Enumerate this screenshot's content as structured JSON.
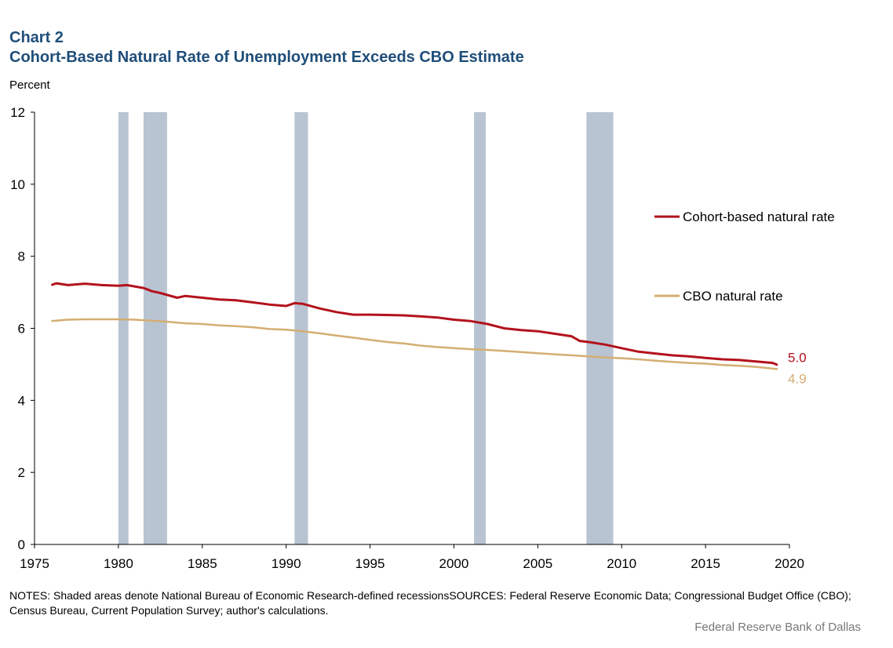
{
  "header": {
    "chart_number": "Chart 2",
    "title": "Cohort-Based Natural Rate of Unemployment Exceeds CBO Estimate",
    "unit": "Percent"
  },
  "chart_data": {
    "type": "line",
    "title": "Cohort-Based Natural Rate of Unemployment Exceeds CBO Estimate",
    "ylabel": "Percent",
    "xlabel": "",
    "xlim": [
      1975,
      2020
    ],
    "ylim": [
      0,
      12
    ],
    "x_ticks": [
      1975,
      1980,
      1985,
      1990,
      1995,
      2000,
      2005,
      2010,
      2015,
      2020
    ],
    "y_ticks": [
      0,
      2,
      4,
      6,
      8,
      10,
      12
    ],
    "grid": false,
    "recessions": [
      {
        "start": 1980.0,
        "end": 1980.6
      },
      {
        "start": 1981.5,
        "end": 1982.9
      },
      {
        "start": 1990.5,
        "end": 1991.3
      },
      {
        "start": 2001.2,
        "end": 2001.9
      },
      {
        "start": 2007.9,
        "end": 2009.5
      }
    ],
    "series": [
      {
        "name": "Cohort-based natural rate",
        "color": "#b3121c",
        "end_label": "5.0",
        "points": [
          [
            1976.0,
            7.2
          ],
          [
            1976.3,
            7.25
          ],
          [
            1977.0,
            7.2
          ],
          [
            1978.0,
            7.24
          ],
          [
            1979.0,
            7.2
          ],
          [
            1980.0,
            7.18
          ],
          [
            1980.5,
            7.2
          ],
          [
            1981.5,
            7.12
          ],
          [
            1982.0,
            7.03
          ],
          [
            1982.5,
            6.98
          ],
          [
            1983.5,
            6.85
          ],
          [
            1984.0,
            6.9
          ],
          [
            1985.0,
            6.85
          ],
          [
            1986.0,
            6.8
          ],
          [
            1987.0,
            6.78
          ],
          [
            1988.0,
            6.72
          ],
          [
            1989.0,
            6.66
          ],
          [
            1990.0,
            6.62
          ],
          [
            1990.5,
            6.7
          ],
          [
            1991.0,
            6.68
          ],
          [
            1992.0,
            6.55
          ],
          [
            1993.0,
            6.45
          ],
          [
            1994.0,
            6.38
          ],
          [
            1995.0,
            6.38
          ],
          [
            1996.0,
            6.37
          ],
          [
            1997.0,
            6.36
          ],
          [
            1998.0,
            6.33
          ],
          [
            1999.0,
            6.3
          ],
          [
            2000.0,
            6.24
          ],
          [
            2001.0,
            6.2
          ],
          [
            2002.0,
            6.12
          ],
          [
            2003.0,
            6.0
          ],
          [
            2004.0,
            5.95
          ],
          [
            2005.0,
            5.92
          ],
          [
            2006.0,
            5.85
          ],
          [
            2007.0,
            5.78
          ],
          [
            2007.5,
            5.65
          ],
          [
            2008.0,
            5.62
          ],
          [
            2009.0,
            5.55
          ],
          [
            2010.0,
            5.45
          ],
          [
            2011.0,
            5.35
          ],
          [
            2012.0,
            5.3
          ],
          [
            2013.0,
            5.25
          ],
          [
            2014.0,
            5.22
          ],
          [
            2015.0,
            5.18
          ],
          [
            2016.0,
            5.14
          ],
          [
            2017.0,
            5.12
          ],
          [
            2018.0,
            5.08
          ],
          [
            2019.0,
            5.04
          ],
          [
            2019.3,
            4.98
          ]
        ]
      },
      {
        "name": "CBO natural rate",
        "color": "#d4ae72",
        "end_label": "4.9",
        "points": [
          [
            1976.0,
            6.2
          ],
          [
            1977.0,
            6.24
          ],
          [
            1978.0,
            6.25
          ],
          [
            1979.0,
            6.25
          ],
          [
            1980.0,
            6.25
          ],
          [
            1981.0,
            6.24
          ],
          [
            1982.0,
            6.21
          ],
          [
            1983.0,
            6.18
          ],
          [
            1984.0,
            6.14
          ],
          [
            1985.0,
            6.12
          ],
          [
            1986.0,
            6.08
          ],
          [
            1987.0,
            6.06
          ],
          [
            1988.0,
            6.03
          ],
          [
            1989.0,
            5.98
          ],
          [
            1990.0,
            5.96
          ],
          [
            1991.0,
            5.92
          ],
          [
            1992.0,
            5.86
          ],
          [
            1993.0,
            5.8
          ],
          [
            1994.0,
            5.74
          ],
          [
            1995.0,
            5.68
          ],
          [
            1996.0,
            5.62
          ],
          [
            1997.0,
            5.58
          ],
          [
            1998.0,
            5.52
          ],
          [
            1999.0,
            5.48
          ],
          [
            2000.0,
            5.45
          ],
          [
            2001.0,
            5.42
          ],
          [
            2002.0,
            5.4
          ],
          [
            2003.0,
            5.37
          ],
          [
            2004.0,
            5.34
          ],
          [
            2005.0,
            5.31
          ],
          [
            2006.0,
            5.28
          ],
          [
            2007.0,
            5.25
          ],
          [
            2008.0,
            5.22
          ],
          [
            2009.0,
            5.19
          ],
          [
            2010.0,
            5.17
          ],
          [
            2011.0,
            5.14
          ],
          [
            2012.0,
            5.1
          ],
          [
            2013.0,
            5.07
          ],
          [
            2014.0,
            5.04
          ],
          [
            2015.0,
            5.02
          ],
          [
            2016.0,
            4.98
          ],
          [
            2017.0,
            4.96
          ],
          [
            2018.0,
            4.93
          ],
          [
            2019.0,
            4.88
          ],
          [
            2019.3,
            4.87
          ]
        ]
      }
    ],
    "legend": {
      "position": "right"
    },
    "colors": {
      "recession": "#b8c4d2",
      "axis": "#000000"
    }
  },
  "notes": "NOTES: Shaded areas denote National Bureau of Economic Research-defined recessionsSOURCES: Federal Reserve Economic Data; Congressional Budget Office (CBO); Census Bureau, Current Population Survey; author's calculations.",
  "credit": "Federal Reserve Bank of Dallas"
}
